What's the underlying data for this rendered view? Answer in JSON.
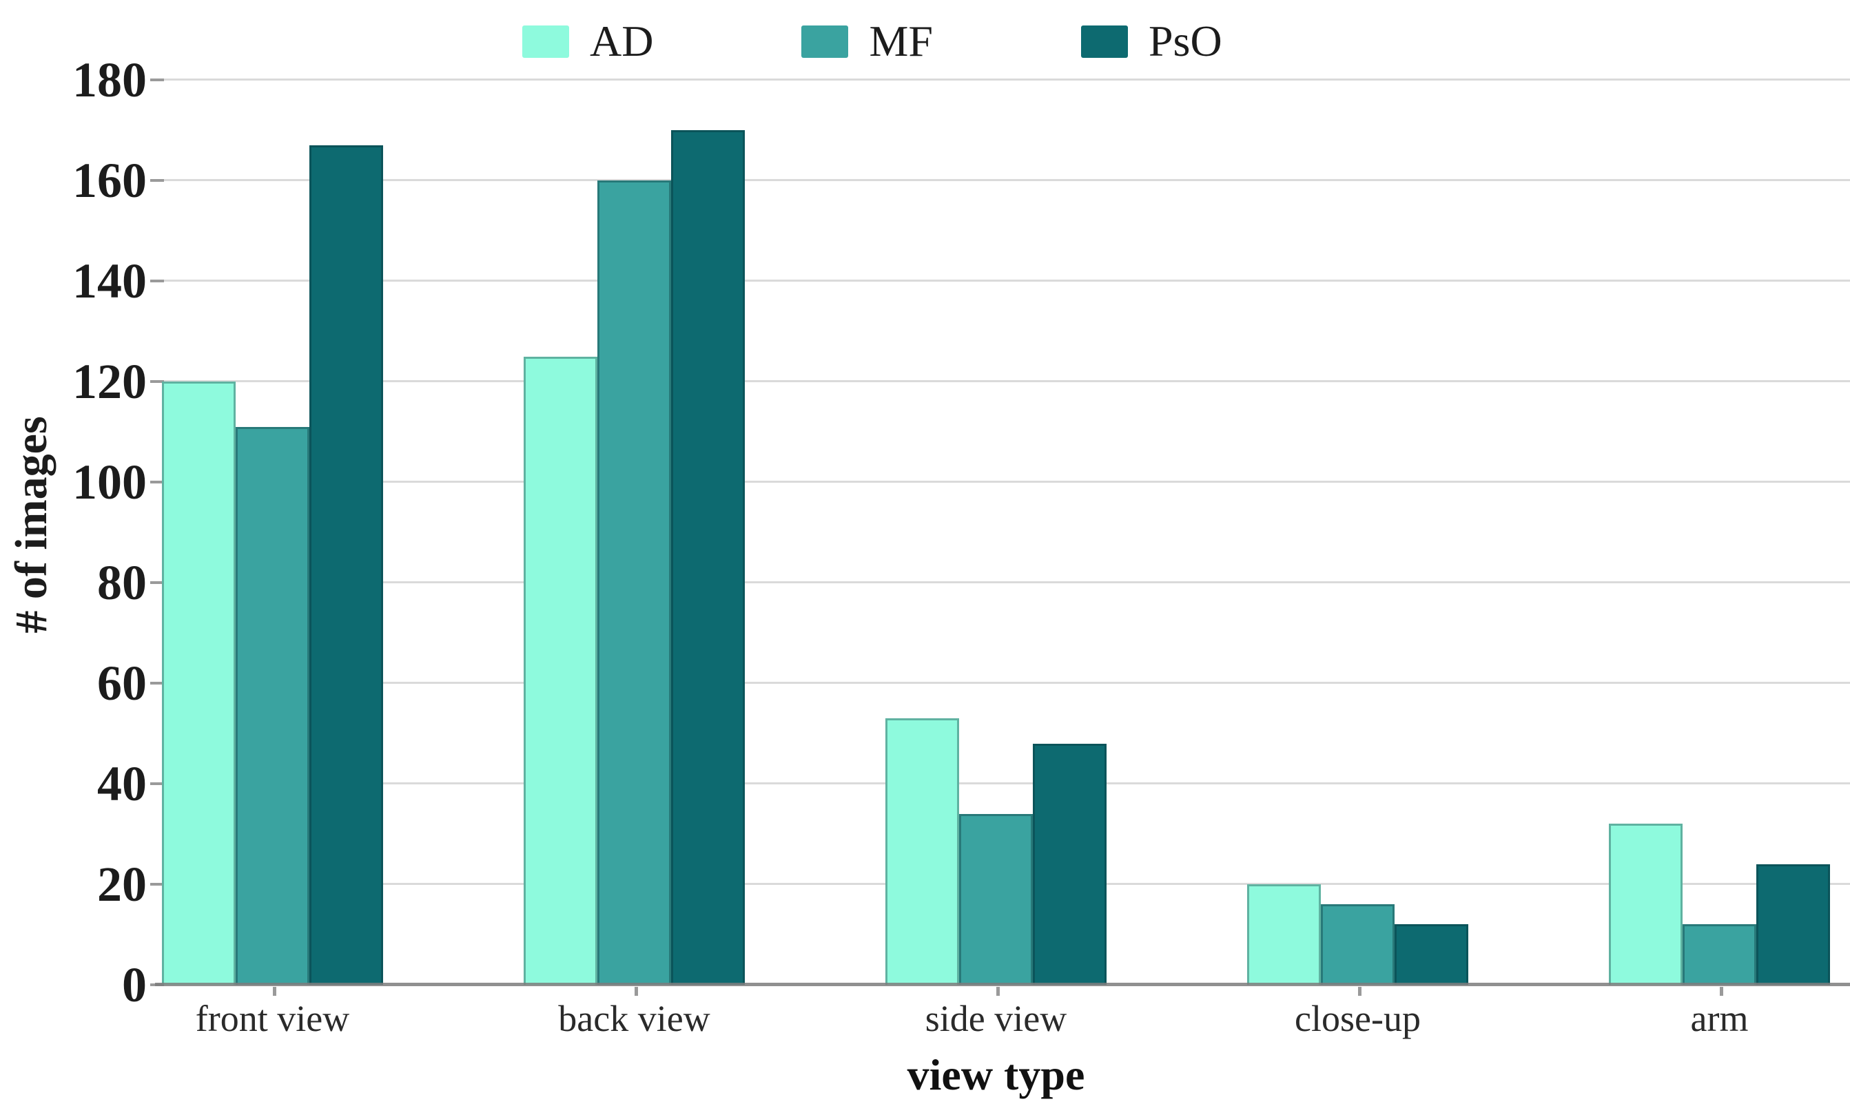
{
  "chart_data": {
    "type": "bar",
    "title": "",
    "categories": [
      "front view",
      "back view",
      "side view",
      "close-up",
      "arm"
    ],
    "series": [
      {
        "name": "AD",
        "color": "#8efadd",
        "values": [
          120,
          125,
          53,
          20,
          32
        ]
      },
      {
        "name": "MF",
        "color": "#3aa3a0",
        "values": [
          111,
          160,
          34,
          16,
          12
        ]
      },
      {
        "name": "PsO",
        "color": "#0d6a70",
        "values": [
          167,
          170,
          48,
          12,
          24
        ]
      }
    ],
    "xlabel": "view type",
    "ylabel": "# of images",
    "ylim": [
      0,
      180
    ],
    "ytick_step": 20,
    "ytick_labels": [
      "0",
      "20",
      "40",
      "60",
      "80",
      "100",
      "120",
      "140",
      "160",
      "180"
    ],
    "grid": "horizontal",
    "legend_position": "top",
    "colors": {
      "gridline": "#dadada",
      "axis_line": "#7d7d7d",
      "tick_text": "#1c1c1c"
    }
  }
}
